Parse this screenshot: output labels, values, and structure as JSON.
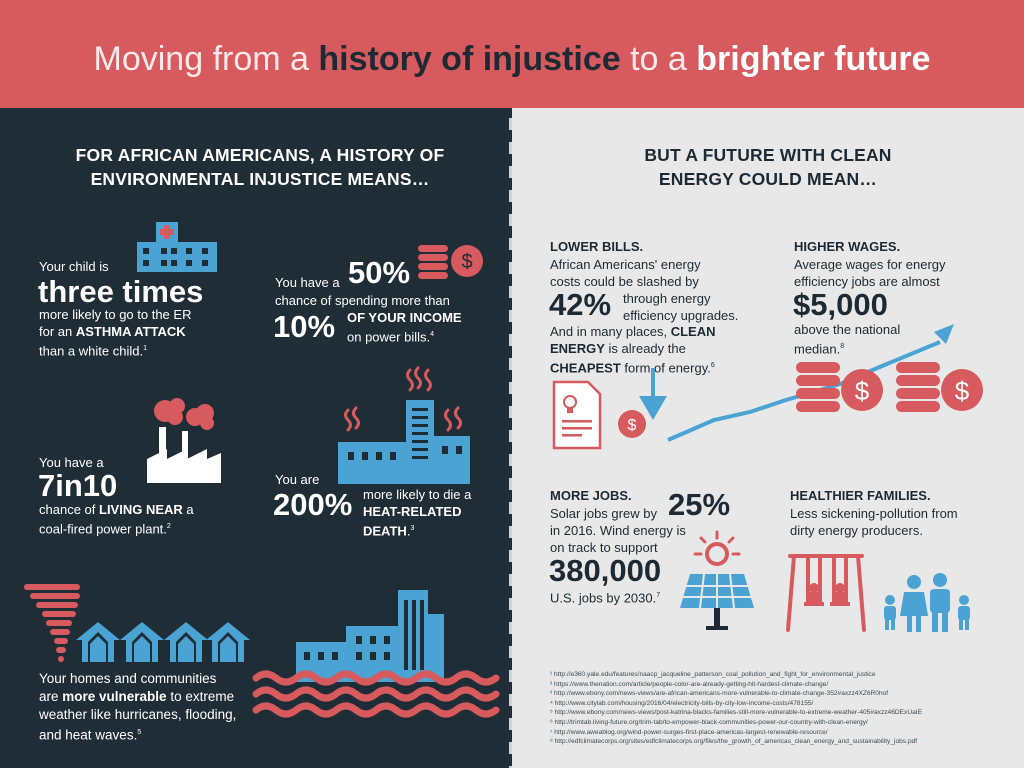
{
  "header": {
    "title_part1": "Moving from a ",
    "title_part2": "history of injustice",
    "title_part3": " to a ",
    "title_part4": "brighter future"
  },
  "left": {
    "heading_line1": "FOR AFRICAN AMERICANS, A HISTORY OF",
    "heading_line2": "ENVIRONMENTAL INJUSTICE MEANS…",
    "asthma": {
      "intro": "Your child is",
      "big": "three times",
      "line1": "more likely to go to the ER",
      "line2_pre": "for an ",
      "line2_bold": "ASTHMA ATTACK",
      "line3": "than a white child.",
      "ref": "1"
    },
    "income": {
      "pre": "You have a",
      "big1": "50%",
      "line1": "chance of spending more than",
      "big2": "10%",
      "bold": "OF YOUR INCOME",
      "line2": "on power bills.",
      "ref": "4"
    },
    "coal": {
      "intro": "You have a",
      "big": "7in10",
      "line1_pre": "chance of ",
      "line1_bold": "LIVING NEAR",
      "line1_post": " a",
      "line2": "coal-fired power plant.",
      "ref": "2"
    },
    "heat": {
      "intro": "You are",
      "big": "200%",
      "line1": "more likely to die a",
      "bold1": "HEAT-RELATED",
      "bold2": "DEATH",
      "post": ".",
      "ref": "3"
    },
    "weather": {
      "line1": "Your homes and communities",
      "line2_pre": "are ",
      "line2_bold": "more vulnerable",
      "line2_post": " to extreme",
      "line3": "weather like hurricanes, flooding,",
      "line4": "and heat waves.",
      "ref": "5"
    }
  },
  "right": {
    "heading_line1": "BUT A FUTURE WITH CLEAN",
    "heading_line2": "ENERGY COULD MEAN…",
    "bills": {
      "title": "LOWER BILLS.",
      "line1": "African Americans' energy",
      "line2": "costs could be slashed by",
      "big": "42%",
      "side1": "through energy",
      "side2": "efficiency upgrades.",
      "line3_pre": "And in many places, ",
      "line3_bold": "CLEAN",
      "line4_bold": "ENERGY",
      "line4_post": " is already the",
      "line5_bold": "CHEAPEST",
      "line5_post": " form of energy.",
      "ref": "6"
    },
    "wages": {
      "title": "HIGHER WAGES.",
      "line1": "Average wages for energy",
      "line2": "efficiency jobs are almost",
      "big": "$5,000",
      "line3": "above the national",
      "line4": "median.",
      "ref": "8"
    },
    "jobs": {
      "title": "MORE JOBS.",
      "line1": "Solar jobs grew by",
      "big1": "25%",
      "line2": "in 2016. Wind energy is",
      "line3": "on track to support",
      "big2": "380,000",
      "line4": "U.S. jobs by 2030.",
      "ref": "7"
    },
    "families": {
      "title": "HEALTHIER FAMILIES.",
      "line1": "Less sickening-pollution from",
      "line2": "dirty energy producers."
    },
    "footnotes": [
      "¹ http://e360.yale.edu/features/naacp_jacqueline_patterson_coal_pollution_and_fight_for_environmental_justice",
      "² https://www.thenation.com/article/people-color-are-already-getting-hit-hardest-climate-change/",
      "³ http://www.ebony.com/news-views/are-african-americans-more-vulnerable-to-climate-change-352#axzz4XZ6R0hof",
      "⁴ http://www.citylab.com/housing/2016/04/electricity-bills-by-city-low-income-costs/478155/",
      "⁵ http://www.ebony.com/news-views/post-katrina-blacks-families-still-more-vulnerable-to-extreme-weather-405#axzz46DExUaIE",
      "⁶ http://trimtab.living-future.org/trim-tab/to-empower-black-communities-power-our-country-with-clean-energy/",
      "⁷ http://www.aweablog.org/wind-power-surges-first-place-americas-largest-renewable-resource/",
      "⁸ http://edfclimatecorps.org/sites/edfclimatecorps.org/files/the_growth_of_americas_clean_energy_and_sustainability_jobs.pdf"
    ]
  },
  "colors": {
    "banner": "#d75a5e",
    "dark_panel": "#1f2d36",
    "light_panel": "#e8e8e8",
    "accent_blue": "#4ba3d3",
    "accent_red": "#d75a5e"
  },
  "icons": [
    "hospital-icon",
    "coins-icon",
    "factory-icon",
    "power-plant-icon",
    "tornado-icon",
    "houses-icon",
    "flooded-city-icon",
    "bill-document-icon",
    "down-arrow-icon",
    "coins-stack-icon",
    "up-arrow-icon",
    "solar-panel-icon",
    "swing-set-icon",
    "family-icon"
  ]
}
